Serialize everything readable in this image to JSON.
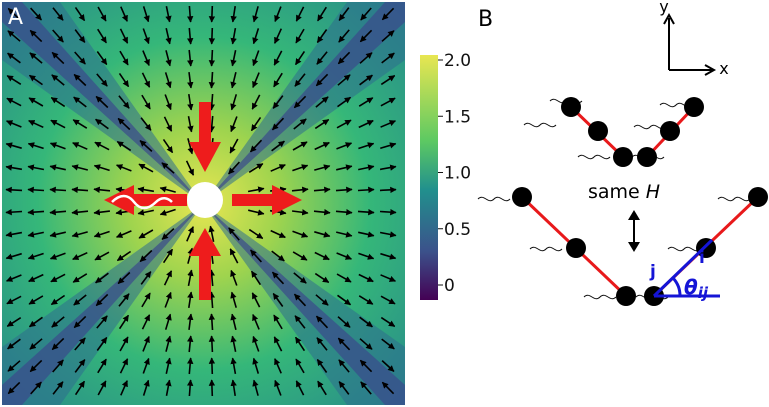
{
  "panels": {
    "a": {
      "letter": "A"
    },
    "b": {
      "letter": "B"
    }
  },
  "colorbar": {
    "ticks": [
      {
        "label": "2.0",
        "value": 2.0
      },
      {
        "label": "1.5",
        "value": 1.5
      },
      {
        "label": "1.0",
        "value": 1.0
      },
      {
        "label": "0.5",
        "value": 0.5
      },
      {
        "label": "0",
        "value": 0.0
      }
    ],
    "colors": [
      "#440154",
      "#3b528b",
      "#21908d",
      "#5dc962",
      "#e8e651"
    ]
  },
  "axes": {
    "x": "x",
    "y": "y"
  },
  "labels": {
    "same": "same ",
    "H": "H",
    "i": "i",
    "j": "j",
    "theta": "θ",
    "theta_sub": "ij"
  },
  "colors": {
    "rod": "#e8191b",
    "arrow": "#ee1c1c",
    "angle": "#1515d6",
    "particle": "#000000",
    "background": "#ffffff"
  }
}
